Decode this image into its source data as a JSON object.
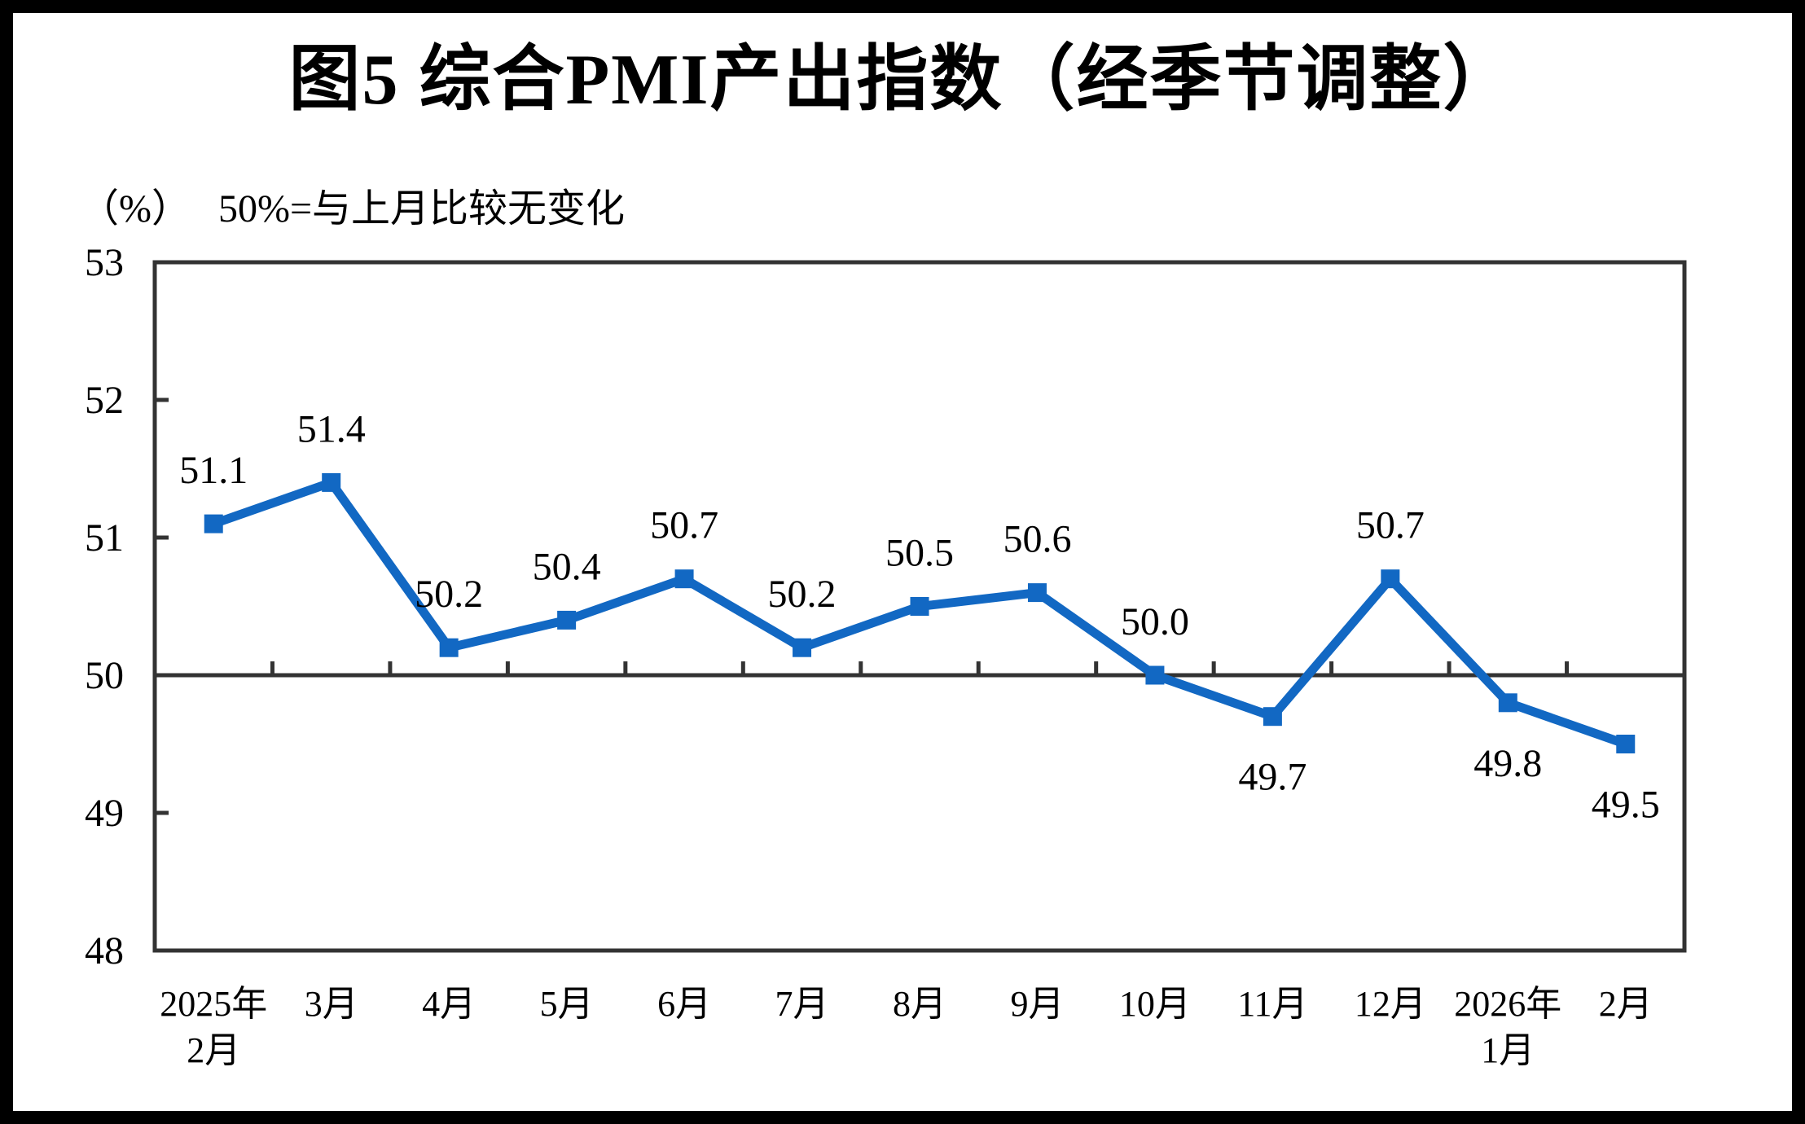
{
  "chart_data": {
    "type": "line",
    "title": "图5 综合PMI产出指数（经季节调整）",
    "unit_label": "（%）",
    "subtitle_note": "50%=与上月比较无变化",
    "categories": [
      {
        "line1": "2025年",
        "line2": "2月"
      },
      {
        "line1": "3月"
      },
      {
        "line1": "4月"
      },
      {
        "line1": "5月"
      },
      {
        "line1": "6月"
      },
      {
        "line1": "7月"
      },
      {
        "line1": "8月"
      },
      {
        "line1": "9月"
      },
      {
        "line1": "10月"
      },
      {
        "line1": "11月"
      },
      {
        "line1": "12月"
      },
      {
        "line1": "2026年",
        "line2": "1月"
      },
      {
        "line1": "2月"
      }
    ],
    "values": [
      51.1,
      51.4,
      50.2,
      50.4,
      50.7,
      50.2,
      50.5,
      50.6,
      50.0,
      49.7,
      50.7,
      49.8,
      49.5
    ],
    "label_position": [
      "above",
      "above",
      "above",
      "above",
      "above",
      "above",
      "above",
      "above",
      "above",
      "below",
      "above",
      "below",
      "below"
    ],
    "value_label_format": "0.0",
    "ylim": [
      48,
      53
    ],
    "yticks": [
      48,
      49,
      50,
      51,
      52,
      53
    ],
    "reference_line": 50,
    "xlabel": "",
    "ylabel": "",
    "legend": "none",
    "grid": "off",
    "line_color": "#1268C3",
    "marker": "square",
    "axis_color": "#333333"
  }
}
